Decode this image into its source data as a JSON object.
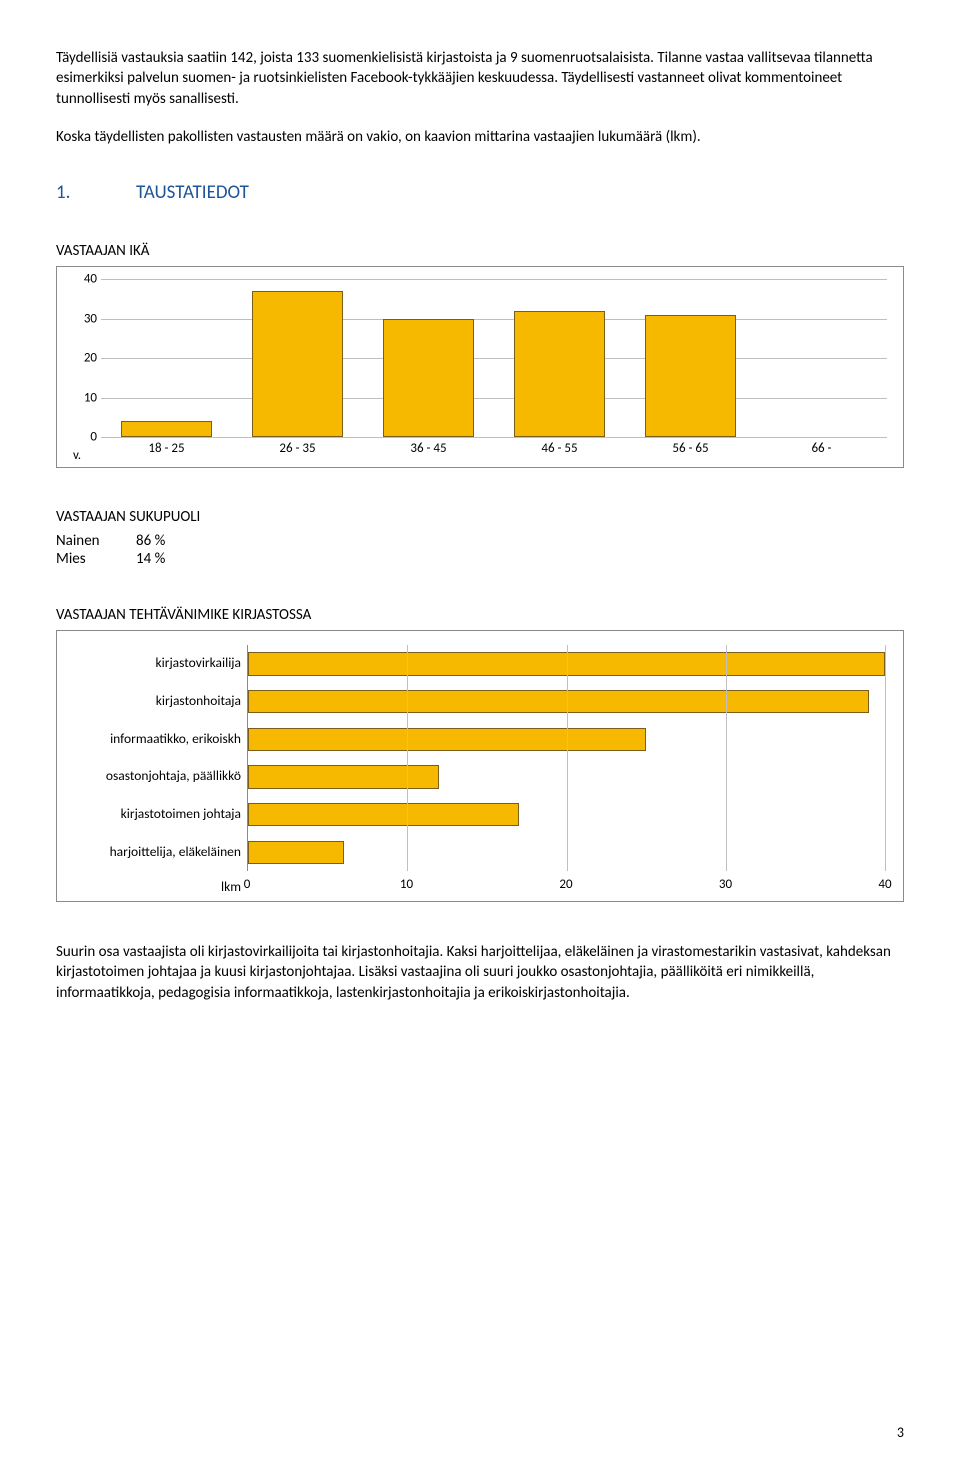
{
  "intro": {
    "p1": "Täydellisiä vastauksia saatiin 142, joista 133 suomenkielisistä kirjastoista ja 9 suomenruotsalaisista. Tilanne vastaa vallitsevaa tilannetta esimerkiksi palvelun suomen- ja ruotsinkielisten Facebook-tykkääjien keskuudessa. Täydellisesti vastanneet olivat kommentoineet tunnollisesti myös sanallisesti.",
    "p2": "Koska täydellisten pakollisten vastausten määrä on vakio, on kaavion mittarina vastaajien lukumäärä (lkm)."
  },
  "section1": {
    "num": "1.",
    "title": "TAUSTATIEDOT"
  },
  "age_chart": {
    "title": "VASTAAJAN IKÄ",
    "type": "bar",
    "corner_label": "v.",
    "categories": [
      "18 - 25",
      "26 - 35",
      "36 - 45",
      "46 - 55",
      "56 - 65",
      "66 -"
    ],
    "values": [
      4,
      37,
      30,
      32,
      31,
      0
    ],
    "ylim": [
      0,
      40
    ],
    "ytick_step": 10,
    "yticks": [
      0,
      10,
      20,
      30,
      40
    ],
    "bar_color": "#f7b900",
    "bar_border": "#7a5e1a",
    "grid_color": "#bfbfbf",
    "plot_border": "#8a8a8a",
    "label_fontsize": 13
  },
  "gender": {
    "title": "VASTAAJAN SUKUPUOLI",
    "rows": [
      {
        "label": "Nainen",
        "value": "86 %"
      },
      {
        "label": "Mies",
        "value": "14 %"
      }
    ]
  },
  "role_chart": {
    "title": "VASTAAJAN TEHTÄVÄNIMIKE KIRJASTOSSA",
    "type": "bar-horizontal",
    "categories": [
      "kirjastovirkailija",
      "kirjastonhoitaja",
      "informaatikko, erikoiskh",
      "osastonjohtaja, päällikkö",
      "kirjastotoimen johtaja",
      "harjoittelija, eläkeläinen"
    ],
    "values": [
      40,
      39,
      25,
      12,
      17,
      6
    ],
    "xlim": [
      0,
      40
    ],
    "xtick_step": 10,
    "xticks": [
      0,
      10,
      20,
      30,
      40
    ],
    "axis_title": "lkm",
    "bar_color": "#f7b900",
    "bar_border": "#7a5e1a",
    "grid_color": "#bfbfbf",
    "label_fontsize": 13
  },
  "outro": {
    "p1": "Suurin osa vastaajista oli kirjastovirkailijoita tai kirjastonhoitajia. Kaksi harjoittelijaa, eläkeläinen ja virastomestarikin vastasivat, kahdeksan kirjastotoimen johtajaa ja kuusi kirjastonjohtajaa. Lisäksi vastaajina oli suuri joukko osastonjohtajia, päälliköitä eri nimikkeillä, informaatikkoja, pedagogisia informaatikkoja, lastenkirjastonhoitajia ja erikoiskirjastonhoitajia."
  },
  "page_number": "3"
}
